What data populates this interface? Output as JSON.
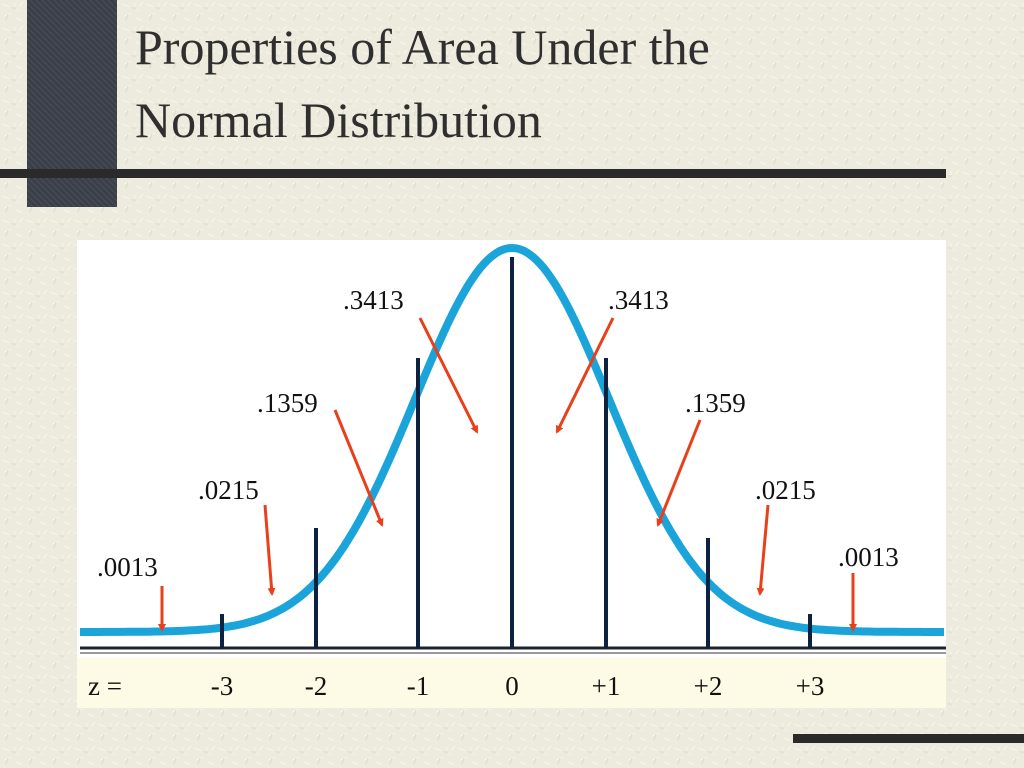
{
  "header": {
    "title_lines": [
      "Properties of Area Under the",
      "Normal Distribution"
    ]
  },
  "diagram": {
    "area_labels": [
      ".0013",
      ".0215",
      ".1359",
      ".3413",
      ".3413",
      ".1359",
      ".0215",
      ".0013"
    ],
    "z_label": "z =",
    "z_values": [
      "-3",
      "-2",
      "-1",
      "0",
      "+1",
      "+2",
      "+3"
    ]
  }
}
